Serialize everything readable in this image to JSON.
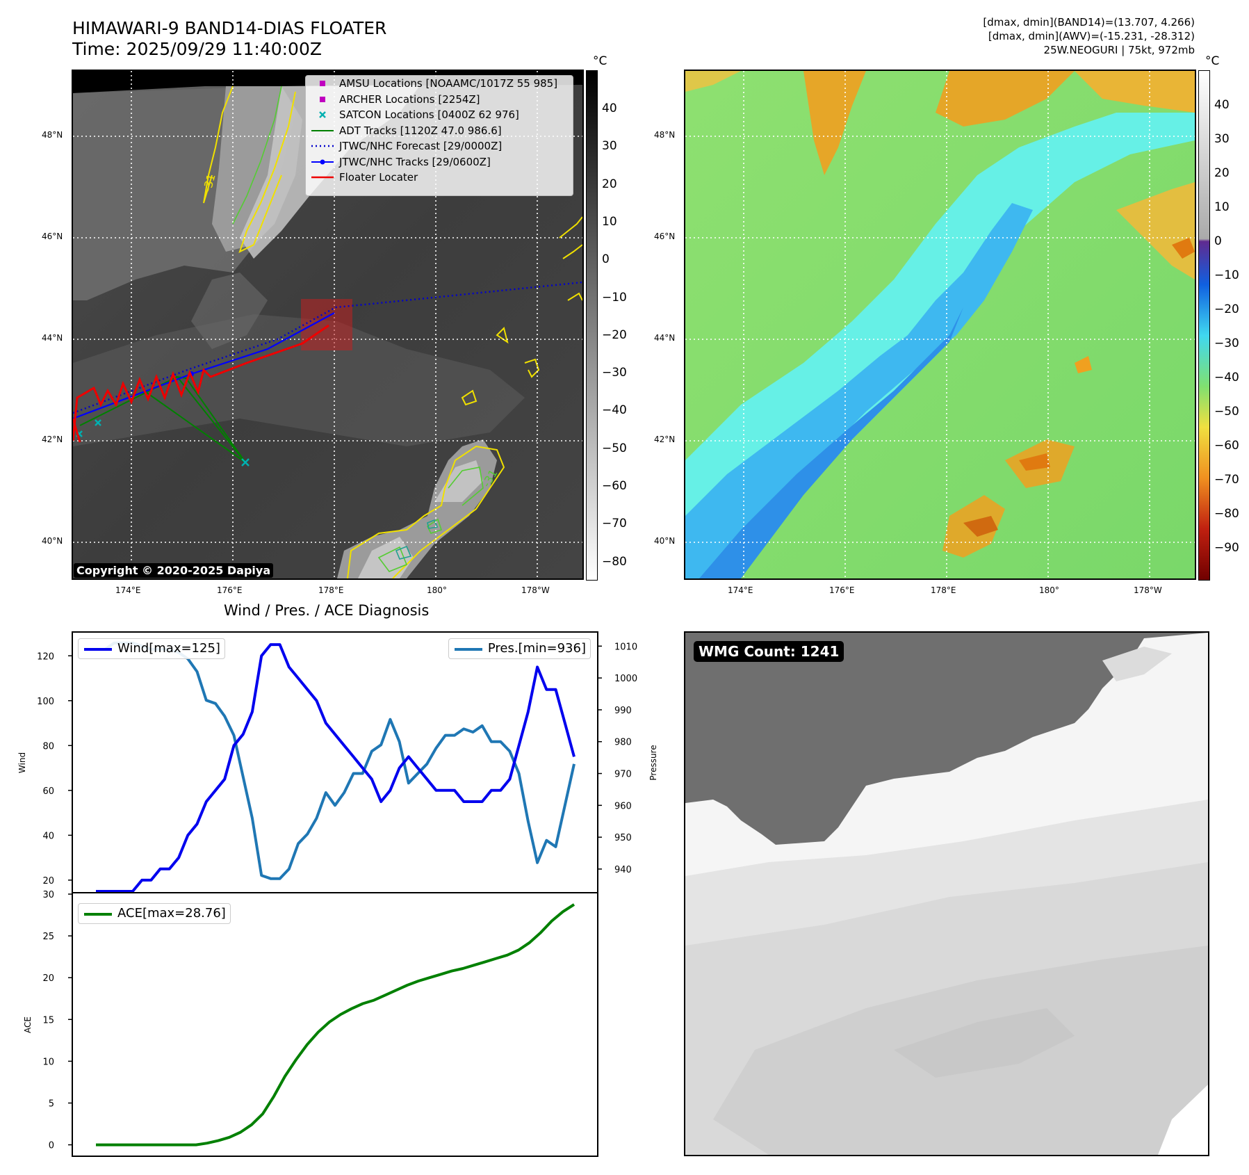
{
  "header": {
    "title_line1": "HIMAWARI-9 BAND14-DIAS FLOATER",
    "title_line2": "Time: 2025/09/29 11:40:00Z",
    "info_line1": "[dmax, dmin](BAND14)=(13.707, 4.266)",
    "info_line2": "[dmax, dmin](AWV)=(-15.231, -28.312)",
    "info_line3": "25W.NEOGURI | 75kt, 972mb"
  },
  "map": {
    "lat_labels": [
      "48°N",
      "46°N",
      "44°N",
      "42°N",
      "40°N"
    ],
    "lon_labels": [
      "174°E",
      "176°E",
      "178°E",
      "180°",
      "178°W"
    ],
    "contour_label": "-31",
    "copyright": "Copyright © 2020-2025 Dapiya",
    "legend": [
      {
        "label": "AMSU Locations [NOAAMC/1017Z 55 985]",
        "symbol": "square",
        "color": "#c000c0"
      },
      {
        "label": "ARCHER Locations [2254Z]",
        "symbol": "square",
        "color": "#c000c0"
      },
      {
        "label": "SATCON Locations [0400Z 62 976]",
        "symbol": "x",
        "color": "#00b0b0"
      },
      {
        "label": "ADT Tracks [1120Z 47.0 986.6]",
        "symbol": "line",
        "color": "#008000"
      },
      {
        "label": "JTWC/NHC Forecast [29/0000Z]",
        "symbol": "dotted",
        "color": "#0000cc"
      },
      {
        "label": "JTWC/NHC Tracks [29/0600Z]",
        "symbol": "line-dot",
        "color": "#0000ff"
      },
      {
        "label": "Floater Locater",
        "symbol": "line",
        "color": "#ee0000"
      }
    ]
  },
  "colorbar_left": {
    "unit": "°C",
    "ticks": [
      "40",
      "30",
      "20",
      "10",
      "0",
      "−10",
      "−20",
      "−30",
      "−40",
      "−50",
      "−60",
      "−70",
      "−80"
    ]
  },
  "colorbar_right": {
    "unit": "°C",
    "ticks": [
      "40",
      "30",
      "20",
      "10",
      "0",
      "−10",
      "−20",
      "−30",
      "−40",
      "−50",
      "−60",
      "−70",
      "−80",
      "−90"
    ]
  },
  "chart_data": {
    "type": "line",
    "title": "Wind / Pres. / ACE Diagnosis",
    "wind": {
      "legend": "Wind[max=125]",
      "ylabel": "Wind",
      "ylim": [
        15,
        130
      ],
      "color": "#0000ee",
      "ticks": [
        20,
        40,
        60,
        80,
        100,
        120
      ],
      "values": [
        15,
        15,
        15,
        15,
        15,
        20,
        20,
        25,
        25,
        30,
        40,
        45,
        55,
        60,
        65,
        80,
        85,
        95,
        120,
        125,
        125,
        115,
        110,
        105,
        100,
        90,
        85,
        80,
        75,
        70,
        65,
        55,
        60,
        70,
        75,
        70,
        65,
        60,
        60,
        60,
        55,
        55,
        55,
        60,
        60,
        65,
        80,
        95,
        115,
        105,
        105,
        90,
        75
      ]
    },
    "pressure": {
      "legend": "Pres.[min=936]",
      "ylabel": "Pressure",
      "ylim": [
        933,
        1014
      ],
      "color": "#1f77b4",
      "ticks": [
        940,
        950,
        960,
        970,
        980,
        990,
        1000,
        1010
      ],
      "values": [
        1009,
        1009,
        1011,
        1011,
        1011,
        1010,
        1009,
        1009,
        1009,
        1008,
        1006,
        1002,
        993,
        992,
        988,
        982,
        969,
        956,
        938,
        937,
        937,
        940,
        948,
        951,
        956,
        964,
        960,
        964,
        970,
        970,
        977,
        979,
        987,
        980,
        967,
        970,
        973,
        978,
        982,
        982,
        984,
        983,
        985,
        980,
        980,
        977,
        970,
        955,
        942,
        949,
        947,
        960,
        973
      ]
    },
    "ace": {
      "legend": "ACE[max=28.76]",
      "ylabel": "ACE",
      "ylim": [
        -1.2,
        30
      ],
      "color": "#008000",
      "ticks": [
        0,
        5,
        10,
        15,
        20,
        25,
        30
      ],
      "values": [
        0,
        0,
        0,
        0,
        0,
        0,
        0,
        0,
        0,
        0,
        0.2,
        0.5,
        0.9,
        1.5,
        2.4,
        3.7,
        5.8,
        8.2,
        10.2,
        12.0,
        13.5,
        14.7,
        15.6,
        16.3,
        16.9,
        17.3,
        17.9,
        18.5,
        19.1,
        19.6,
        20.0,
        20.4,
        20.8,
        21.1,
        21.5,
        21.9,
        22.3,
        22.7,
        23.3,
        24.2,
        25.4,
        26.8,
        27.9,
        28.76
      ]
    }
  },
  "wmg": {
    "label": "WMG Count: 1241"
  }
}
